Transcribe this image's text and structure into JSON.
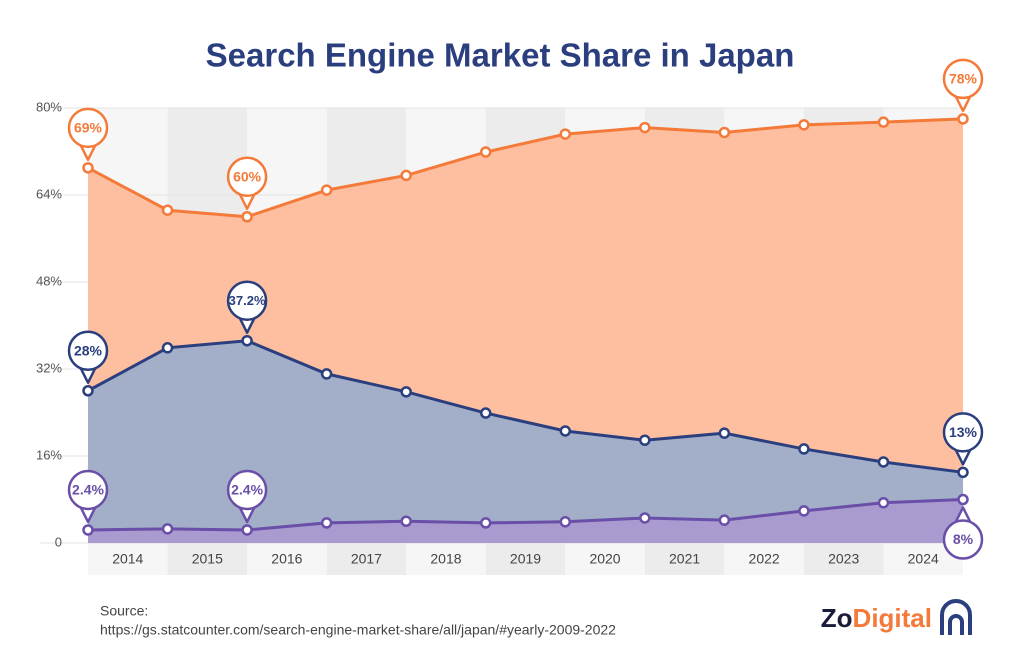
{
  "chart_data": {
    "type": "area",
    "title": "Search Engine Market Share in Japan",
    "x": [
      2013.5,
      2014.5,
      2015.5,
      2016.5,
      2017.5,
      2018.5,
      2019.5,
      2020.5,
      2021.5,
      2022.5,
      2023.5,
      2024.5
    ],
    "xlim": [
      2013.5,
      2024.5
    ],
    "xticks": [
      2014,
      2015,
      2016,
      2017,
      2018,
      2019,
      2020,
      2021,
      2022,
      2023,
      2024
    ],
    "ylim": [
      0,
      80
    ],
    "yticks": [
      0,
      {
        "value": 16,
        "label": "16%"
      },
      {
        "value": 32,
        "label": "32%"
      },
      {
        "value": 48,
        "label": "48%"
      },
      {
        "value": 64,
        "label": "64%"
      },
      {
        "value": 80,
        "label": "80%"
      }
    ],
    "grid": true,
    "series": [
      {
        "color": "#f47a3a",
        "fill": "#fdbf9f",
        "values": [
          69,
          61.2,
          60,
          64.9,
          67.6,
          71.9,
          75.2,
          76.4,
          75.5,
          76.9,
          77.4,
          78
        ],
        "value_labels": [
          "69%",
          null,
          "60%",
          null,
          null,
          null,
          null,
          null,
          null,
          null,
          null,
          "78%"
        ]
      },
      {
        "color": "#2b3f7e",
        "fill": "#a3afc8",
        "values": [
          28,
          35.9,
          37.2,
          31.1,
          27.8,
          23.9,
          20.6,
          18.9,
          20.2,
          17.3,
          14.9,
          13
        ],
        "value_labels": [
          "28%",
          null,
          "37.2%",
          null,
          null,
          null,
          null,
          null,
          null,
          null,
          null,
          "13%"
        ]
      },
      {
        "color": "#6a4fa8",
        "fill": "#a99bd0",
        "values": [
          2.4,
          2.6,
          2.4,
          3.7,
          4.0,
          3.7,
          3.9,
          4.6,
          4.2,
          5.9,
          7.4,
          8
        ],
        "value_labels": [
          "2.4%",
          null,
          "2.4%",
          null,
          null,
          null,
          null,
          null,
          null,
          null,
          null,
          "8%"
        ]
      }
    ]
  },
  "source_label": "Source:",
  "source_url": "https://gs.statcounter.com/search-engine-market-share/all/japan/#yearly-2009-2022",
  "brand": [
    "Zo",
    "Digital"
  ]
}
